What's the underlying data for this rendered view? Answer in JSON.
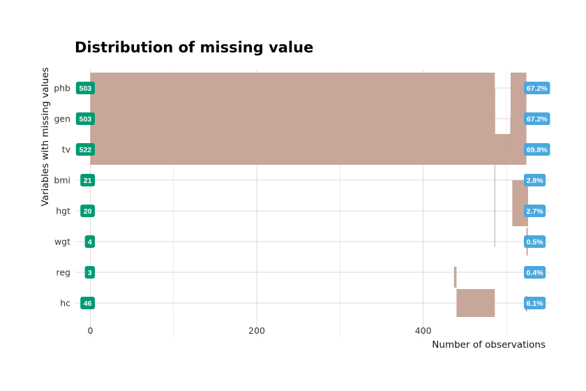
{
  "chart_data": {
    "type": "bar",
    "title": "Distribution of missing value",
    "xlabel": "Number of observations",
    "ylabel": "Variables with missing values",
    "xlim": [
      -18,
      552
    ],
    "x_ticks": [
      0,
      200,
      400
    ],
    "grid": true,
    "categories": [
      "phb",
      "gen",
      "tv",
      "bmi",
      "hgt",
      "wgt",
      "reg",
      "hc"
    ],
    "counts": [
      503,
      503,
      522,
      21,
      20,
      4,
      3,
      46
    ],
    "percents": [
      "67.2%",
      "67.2%",
      "69.8%",
      "2.8%",
      "2.7%",
      "0.5%",
      "0.4%",
      "6.1%"
    ],
    "pareto_bars": [
      {
        "category": "phb",
        "start": 0,
        "end": 486
      },
      {
        "category": "gen",
        "start": 0,
        "end": 486
      },
      {
        "category": "tv",
        "start": 0,
        "end": 505
      },
      {
        "category": "hc",
        "start": 440,
        "end": 486
      },
      {
        "category": "reg",
        "start": 437,
        "end": 440
      }
    ],
    "cumulative_bars": [
      {
        "start": 505,
        "end": 524,
        "from": "phb",
        "to": "tv"
      },
      {
        "start": 507,
        "end": 526,
        "from": "bmi",
        "to": "hgt"
      },
      {
        "start": 524,
        "end": 525,
        "from": "wgt",
        "to": "wgt"
      },
      {
        "start": 523,
        "end": 525,
        "from": "hc",
        "to": "hc"
      }
    ],
    "colors": {
      "bar": "#c9a69a",
      "count_badge": "#009b72",
      "percent_badge": "#4aa8dd",
      "grid": "#d9d9d9"
    }
  }
}
